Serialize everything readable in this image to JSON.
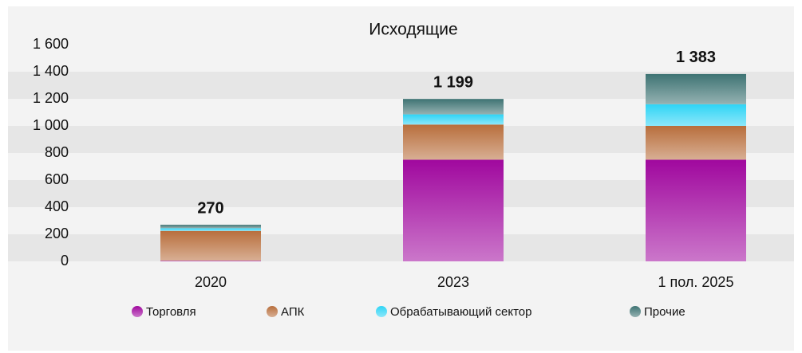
{
  "chart_data": {
    "type": "stacked_bar",
    "title": "Исходящие",
    "categories": [
      "2020",
      "2023",
      "1 пол. 2025"
    ],
    "series": [
      {
        "name": "Торговля",
        "color": "#a0089e",
        "values": [
          5,
          750,
          750
        ]
      },
      {
        "name": "АПК",
        "color": "#b86e3c",
        "values": [
          220,
          260,
          250
        ]
      },
      {
        "name": "Обрабатывающий сектор",
        "color": "#2ed4f5",
        "values": [
          20,
          75,
          160
        ]
      },
      {
        "name": "Прочие",
        "color": "#3e7373",
        "values": [
          25,
          114,
          223
        ]
      }
    ],
    "totals": [
      270,
      1199,
      1383
    ],
    "totals_labels": [
      "270",
      "1 199",
      "1 383"
    ],
    "ylim": [
      0,
      1600
    ],
    "yticks": [
      0,
      200,
      400,
      600,
      800,
      {
        "value": 1000,
        "label": "1 000"
      },
      {
        "value": 1200,
        "label": "1 200"
      },
      {
        "value": 1400,
        "label": "1 400"
      },
      {
        "value": 1600,
        "label": "1 600"
      }
    ],
    "grid": true,
    "legend": "bottom"
  }
}
